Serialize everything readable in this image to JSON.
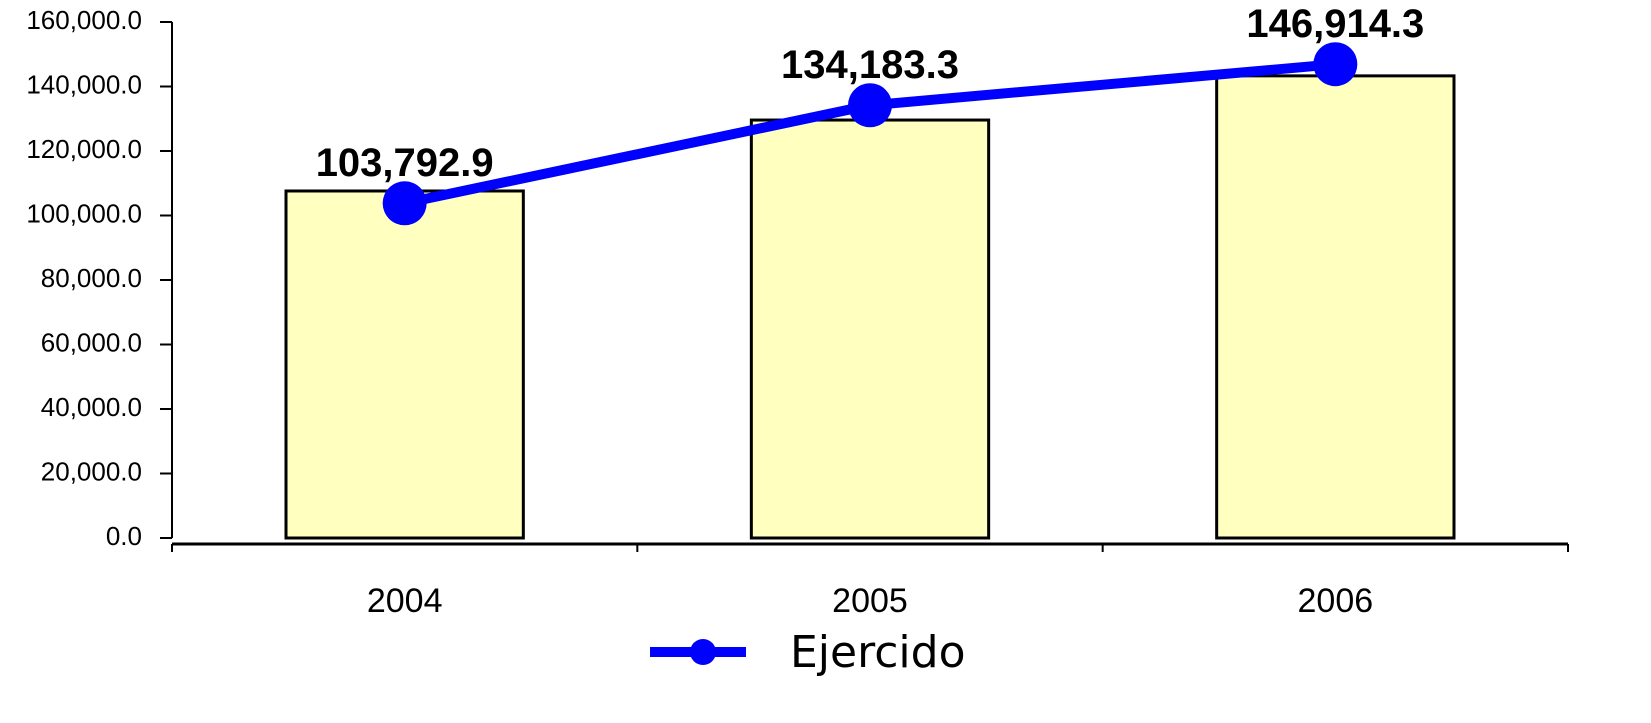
{
  "chart_data": {
    "type": "bar+line",
    "categories": [
      "2004",
      "2005",
      "2006"
    ],
    "series": [
      {
        "type": "bar",
        "color": "#ffffc0",
        "values": [
          107600,
          129600,
          143300
        ]
      },
      {
        "type": "line",
        "name": "Ejercido",
        "color": "#0000ff",
        "values": [
          103792.9,
          134183.3,
          146914.3
        ],
        "value_labels": [
          "103,792.9",
          "134,183.3",
          "146,914.3"
        ]
      }
    ],
    "ylim": [
      0,
      160000
    ],
    "yticks": [
      {
        "value": 0,
        "label": "0.0"
      },
      {
        "value": 20000,
        "label": "20,000.0"
      },
      {
        "value": 40000,
        "label": "40,000.0"
      },
      {
        "value": 60000,
        "label": "60,000.0"
      },
      {
        "value": 80000,
        "label": "80,000.0"
      },
      {
        "value": 100000,
        "label": "100,000.0"
      },
      {
        "value": 120000,
        "label": "120,000.0"
      },
      {
        "value": 140000,
        "label": "140,000.0"
      },
      {
        "value": 160000,
        "label": "160,000.0"
      }
    ],
    "legend": "bottom"
  }
}
